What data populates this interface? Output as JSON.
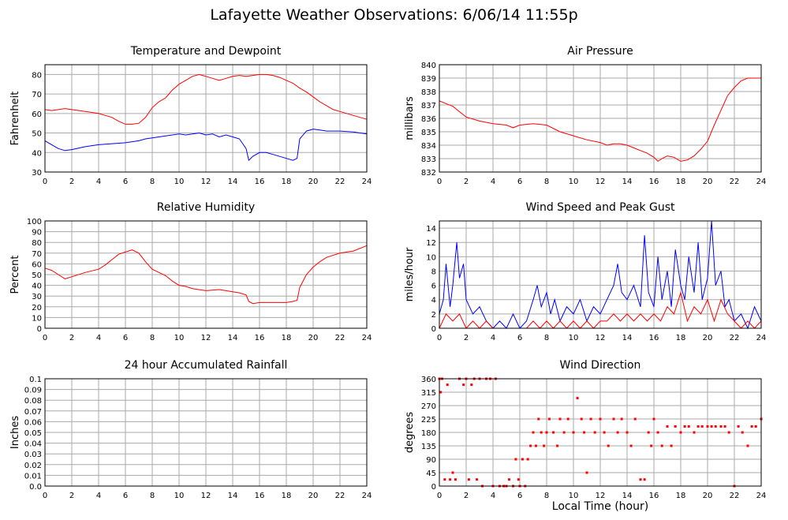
{
  "page": {
    "title": "Lafayette Weather Observations: 6/06/14 11:55p",
    "x_axis_title": "Local Time (hour)"
  },
  "colors": {
    "red": "#ff0000",
    "blue": "#0000ff",
    "grid": "#aaaaaa",
    "frame": "#000000"
  },
  "chart_data": [
    {
      "id": "temperature",
      "type": "line",
      "title": "Temperature and Dewpoint",
      "ylabel": "Fahrenheit",
      "xlim": [
        0,
        24
      ],
      "ylim": [
        30,
        85
      ],
      "yticks": [
        30,
        40,
        50,
        60,
        70,
        80
      ],
      "xticks": [
        0,
        2,
        4,
        6,
        8,
        10,
        12,
        14,
        16,
        18,
        20,
        22,
        24
      ],
      "grid": true,
      "series": [
        {
          "color": "#ff0000",
          "x": [
            0,
            0.5,
            1,
            1.5,
            2,
            3,
            4,
            5,
            5.5,
            6,
            6.5,
            7,
            7.5,
            8,
            8.5,
            9,
            9.5,
            10,
            10.5,
            11,
            11.5,
            12,
            12.5,
            13,
            13.5,
            14,
            14.5,
            15,
            15.5,
            16,
            16.5,
            17,
            17.5,
            18,
            18.5,
            19,
            19.5,
            20,
            20.5,
            21,
            21.5,
            22,
            23,
            24
          ],
          "y": [
            62,
            61.5,
            62,
            62.5,
            62,
            61,
            60,
            58,
            56,
            54.5,
            54.5,
            55,
            58,
            63,
            66,
            68,
            72,
            75,
            77,
            79,
            80,
            79,
            78,
            77,
            78,
            79,
            79.5,
            79,
            79.5,
            80,
            80,
            79.5,
            78.5,
            77,
            75.5,
            73,
            71,
            68.5,
            66,
            64,
            62,
            61,
            59,
            57
          ]
        },
        {
          "color": "#0000ff",
          "x": [
            0,
            0.5,
            1,
            1.5,
            2,
            3,
            4,
            5,
            6,
            7,
            7.5,
            8,
            8.5,
            9,
            9.5,
            10,
            10.5,
            11,
            11.5,
            12,
            12.5,
            13,
            13.5,
            14,
            14.5,
            15,
            15.2,
            15.5,
            16,
            16.5,
            17,
            17.5,
            18,
            18.5,
            18.8,
            19,
            19.5,
            20,
            20.5,
            21,
            22,
            23,
            24
          ],
          "y": [
            46,
            44,
            42,
            41,
            41.5,
            43,
            44,
            44.5,
            45,
            46,
            47,
            47.5,
            48,
            48.5,
            49,
            49.5,
            49,
            49.5,
            50,
            49,
            49.5,
            48,
            49,
            48,
            47,
            42,
            36,
            38,
            40,
            40,
            39,
            38,
            37,
            36,
            37,
            47,
            51,
            52,
            51.5,
            51,
            51,
            50.5,
            49.5
          ]
        }
      ]
    },
    {
      "id": "pressure",
      "type": "line",
      "title": "Air Pressure",
      "ylabel": "millibars",
      "xlim": [
        0,
        24
      ],
      "ylim": [
        832,
        840
      ],
      "yticks": [
        832,
        833,
        834,
        835,
        836,
        837,
        838,
        839,
        840
      ],
      "xticks": [
        0,
        2,
        4,
        6,
        8,
        10,
        12,
        14,
        16,
        18,
        20,
        22,
        24
      ],
      "grid": true,
      "series": [
        {
          "color": "#ff0000",
          "x": [
            0,
            0.5,
            1,
            1.5,
            2,
            3,
            4,
            5,
            5.5,
            6,
            7,
            8,
            9,
            10,
            11,
            12,
            12.5,
            13,
            13.5,
            14,
            14.5,
            15,
            15.5,
            16,
            16.3,
            16.6,
            17,
            17.5,
            18,
            18.5,
            19,
            19.5,
            20,
            20.5,
            21,
            21.5,
            22,
            22.5,
            23,
            24
          ],
          "y": [
            837.3,
            837.1,
            836.9,
            836.5,
            836.1,
            835.8,
            835.6,
            835.5,
            835.3,
            835.5,
            835.6,
            835.5,
            835,
            834.7,
            834.4,
            834.2,
            834,
            834.1,
            834.1,
            834,
            833.8,
            833.6,
            833.4,
            833.1,
            832.8,
            833,
            833.2,
            833.1,
            832.8,
            832.9,
            833.2,
            833.7,
            834.3,
            835.5,
            836.6,
            837.7,
            838.3,
            838.8,
            839,
            839
          ]
        }
      ]
    },
    {
      "id": "humidity",
      "type": "line",
      "title": "Relative Humidity",
      "ylabel": "Percent",
      "xlim": [
        0,
        24
      ],
      "ylim": [
        0,
        100
      ],
      "yticks": [
        0,
        10,
        20,
        30,
        40,
        50,
        60,
        70,
        80,
        90,
        100
      ],
      "xticks": [
        0,
        2,
        4,
        6,
        8,
        10,
        12,
        14,
        16,
        18,
        20,
        22,
        24
      ],
      "grid": true,
      "series": [
        {
          "color": "#ff0000",
          "x": [
            0,
            0.5,
            1,
            1.5,
            2,
            3,
            4,
            4.5,
            5,
            5.5,
            6,
            6.5,
            7,
            7.5,
            8,
            8.5,
            9,
            9.5,
            10,
            10.5,
            11,
            12,
            13,
            14,
            14.5,
            15,
            15.2,
            15.5,
            16,
            17,
            18,
            18.5,
            18.8,
            19,
            19.5,
            20,
            20.5,
            21,
            22,
            23,
            24
          ],
          "y": [
            56,
            54,
            50,
            46,
            48,
            52,
            55,
            59,
            64,
            69,
            71,
            73,
            70,
            62,
            55,
            52,
            49,
            44,
            40,
            39,
            37,
            35,
            36,
            34,
            33,
            31,
            25,
            23,
            24,
            24,
            24,
            25,
            26,
            38,
            50,
            57,
            62,
            66,
            70,
            72,
            77
          ]
        }
      ]
    },
    {
      "id": "wind-speed",
      "type": "line",
      "title": "Wind Speed and Peak Gust",
      "ylabel": "miles/hour",
      "xlim": [
        0,
        24
      ],
      "ylim": [
        0,
        15
      ],
      "yticks": [
        0,
        2,
        4,
        6,
        8,
        10,
        12,
        14
      ],
      "xticks": [
        0,
        2,
        4,
        6,
        8,
        10,
        12,
        14,
        16,
        18,
        20,
        22,
        24
      ],
      "grid": true,
      "series": [
        {
          "color": "#0000ff",
          "x": [
            0,
            0.3,
            0.5,
            0.8,
            1,
            1.3,
            1.5,
            1.8,
            2,
            2.5,
            3,
            3.5,
            4,
            4.5,
            5,
            5.5,
            6,
            6.5,
            7,
            7.3,
            7.6,
            8,
            8.3,
            8.6,
            9,
            9.5,
            10,
            10.5,
            11,
            11.5,
            12,
            12.5,
            13,
            13.3,
            13.6,
            14,
            14.5,
            15,
            15.3,
            15.6,
            16,
            16.3,
            16.6,
            17,
            17.3,
            17.6,
            18,
            18.3,
            18.6,
            19,
            19.3,
            19.6,
            20,
            20.3,
            20.6,
            21,
            21.3,
            21.6,
            22,
            22.5,
            23,
            23.5,
            24
          ],
          "y": [
            2,
            4,
            9,
            3,
            6,
            12,
            7,
            9,
            4,
            2,
            3,
            1,
            0,
            1,
            0,
            2,
            0,
            1,
            4,
            6,
            3,
            5,
            2,
            4,
            1,
            3,
            2,
            4,
            1,
            3,
            2,
            4,
            6,
            9,
            5,
            4,
            6,
            3,
            13,
            5,
            3,
            10,
            4,
            8,
            3,
            11,
            6,
            4,
            10,
            5,
            12,
            4,
            7,
            15,
            6,
            8,
            3,
            4,
            1,
            2,
            0,
            3,
            1
          ]
        },
        {
          "color": "#ff0000",
          "x": [
            0,
            0.5,
            1,
            1.5,
            2,
            2.5,
            3,
            3.5,
            4,
            4.5,
            5,
            5.5,
            6,
            6.5,
            7,
            7.5,
            8,
            8.5,
            9,
            9.5,
            10,
            10.5,
            11,
            11.5,
            12,
            12.5,
            13,
            13.5,
            14,
            14.5,
            15,
            15.5,
            16,
            16.5,
            17,
            17.5,
            18,
            18.5,
            19,
            19.5,
            20,
            20.5,
            21,
            21.5,
            22,
            22.5,
            23,
            23.5,
            24
          ],
          "y": [
            0,
            2,
            1,
            2,
            0,
            1,
            0,
            1,
            0,
            0,
            0,
            0,
            0,
            0,
            1,
            0,
            1,
            0,
            1,
            0,
            1,
            0,
            1,
            0,
            1,
            1,
            2,
            1,
            2,
            1,
            2,
            1,
            2,
            1,
            3,
            2,
            5,
            1,
            3,
            2,
            4,
            1,
            4,
            2,
            1,
            0,
            1,
            0,
            1
          ]
        }
      ]
    },
    {
      "id": "rainfall",
      "type": "line",
      "title": "24 hour Accumulated Rainfall",
      "ylabel": "Inches",
      "xlim": [
        0,
        24
      ],
      "ylim": [
        0,
        0.1
      ],
      "yticks": [
        0.0,
        0.01,
        0.02,
        0.03,
        0.04,
        0.05,
        0.06,
        0.07,
        0.08,
        0.09,
        0.1
      ],
      "ytick_labels": [
        "0.0",
        "0.01",
        "0.02",
        "0.03",
        "0.04",
        "0.05",
        "0.06",
        "0.07",
        "0.08",
        "0.09",
        "0.1"
      ],
      "xticks": [
        0,
        2,
        4,
        6,
        8,
        10,
        12,
        14,
        16,
        18,
        20,
        22,
        24
      ],
      "grid": true,
      "series": [
        {
          "color": "#ff0000",
          "x": [
            0,
            24
          ],
          "y": [
            0,
            0
          ]
        }
      ]
    },
    {
      "id": "wind-direction",
      "type": "scatter",
      "title": "Wind Direction",
      "ylabel": "degrees",
      "xlim": [
        0,
        24
      ],
      "ylim": [
        0,
        360
      ],
      "yticks": [
        0,
        45,
        90,
        135,
        180,
        225,
        270,
        315,
        360
      ],
      "xticks": [
        0,
        2,
        4,
        6,
        8,
        10,
        12,
        14,
        16,
        18,
        20,
        22,
        24
      ],
      "grid": true,
      "series": [
        {
          "color": "#ff0000",
          "x": [
            0,
            0.1,
            0.2,
            0.4,
            0.6,
            0.8,
            1.0,
            1.2,
            1.5,
            1.8,
            2.0,
            2.2,
            2.4,
            2.6,
            2.8,
            3.0,
            3.2,
            3.5,
            3.8,
            4.0,
            4.2,
            4.5,
            4.8,
            5.0,
            5.2,
            5.5,
            5.7,
            5.9,
            6.0,
            6.2,
            6.4,
            6.6,
            6.8,
            7.0,
            7.2,
            7.4,
            7.6,
            7.8,
            8.0,
            8.2,
            8.5,
            8.8,
            9.0,
            9.3,
            9.6,
            10.0,
            10.3,
            10.6,
            10.8,
            11.0,
            11.3,
            11.6,
            12.0,
            12.3,
            12.6,
            13.0,
            13.3,
            13.6,
            14.0,
            14.3,
            14.6,
            15.0,
            15.3,
            15.6,
            15.8,
            16.0,
            16.3,
            16.6,
            17.0,
            17.3,
            17.6,
            18.0,
            18.3,
            18.6,
            19.0,
            19.3,
            19.6,
            20.0,
            20.3,
            20.6,
            21.0,
            21.3,
            21.6,
            22.0,
            22.3,
            22.6,
            23.0,
            23.3,
            23.6,
            24.0
          ],
          "y": [
            360,
            315,
            360,
            22,
            340,
            22,
            45,
            22,
            360,
            340,
            360,
            22,
            340,
            360,
            22,
            360,
            0,
            360,
            360,
            0,
            360,
            0,
            0,
            0,
            22,
            0,
            90,
            22,
            0,
            90,
            0,
            90,
            135,
            180,
            135,
            225,
            180,
            135,
            180,
            225,
            180,
            135,
            225,
            180,
            225,
            180,
            295,
            225,
            180,
            45,
            225,
            180,
            225,
            180,
            135,
            225,
            180,
            225,
            180,
            135,
            225,
            22,
            22,
            180,
            135,
            225,
            180,
            135,
            200,
            135,
            200,
            180,
            200,
            200,
            180,
            200,
            200,
            200,
            200,
            200,
            200,
            200,
            180,
            0,
            200,
            180,
            135,
            200,
            200,
            225
          ]
        }
      ]
    }
  ]
}
